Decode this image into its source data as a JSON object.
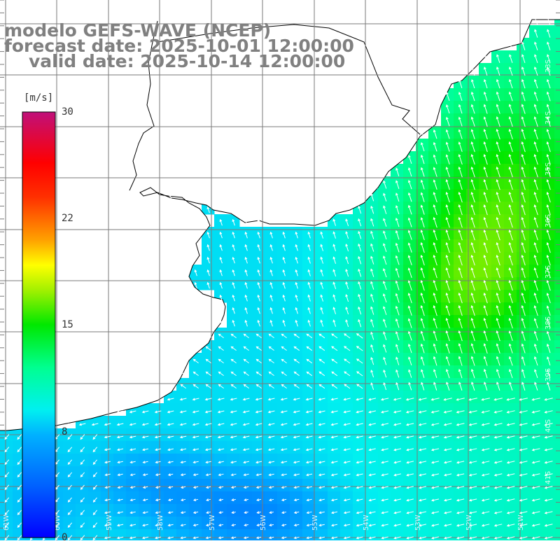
{
  "header": {
    "model": "modelo GEFS-WAVE (NCEP)",
    "forecast": "forecast date: 2025-10-01 12:00:00",
    "valid": "valid date: 2025-10-14 12:00:00"
  },
  "colorbar": {
    "unit": "[m/s]",
    "ticks": [
      "30",
      "22",
      "15",
      "8",
      "0"
    ],
    "tick_values": [
      30,
      22,
      15,
      8,
      0
    ],
    "range": [
      0,
      30
    ],
    "colors": [
      "#0000ff",
      "#0080ff",
      "#00d8ff",
      "#00ffe0",
      "#00ff60",
      "#20e000",
      "#80ff00",
      "#ffff00",
      "#ffa000",
      "#ff5000",
      "#ff0000",
      "#e0003a",
      "#c8107a"
    ]
  },
  "map": {
    "field": "wind speed",
    "land_color": "#ffffff",
    "coast_color": "#000000",
    "grid_color": "#7a7a7a",
    "arrow_color": "#ffffff",
    "lon_labels": [
      "61W",
      "60W",
      "59W",
      "58W",
      "57W",
      "56W",
      "55W",
      "54W",
      "53W",
      "52W",
      "51W"
    ],
    "lat_labels": [
      "33S",
      "34S",
      "35S",
      "36S",
      "37S",
      "38S",
      "39S",
      "40S",
      "41S"
    ]
  }
}
